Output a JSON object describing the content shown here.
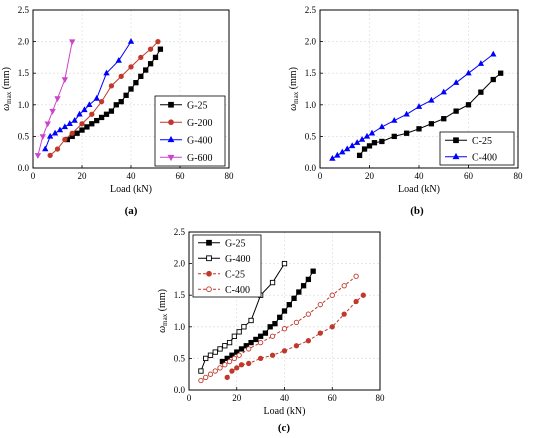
{
  "chart_data": [
    {
      "type": "line",
      "panel_label": "(a)",
      "xlabel": "Load (kN)",
      "ylabel_main": "ω",
      "ylabel_sub": "max",
      "ylabel_unit": " (mm)",
      "xlim": [
        0,
        80
      ],
      "ylim": [
        0,
        2.5
      ],
      "xticks": [
        "0",
        "20",
        "40",
        "60",
        "80"
      ],
      "yticks": [
        "0.0",
        "0.5",
        "1.0",
        "1.5",
        "2.0",
        "2.5"
      ],
      "legend_position": "bottom-right",
      "series": [
        {
          "name": "G-25",
          "color": "#000000",
          "marker": "square",
          "filled": true,
          "dashed": false,
          "x": [
            14,
            16,
            18,
            20,
            22,
            24,
            26,
            28,
            30,
            32,
            34,
            36,
            38,
            40,
            42,
            44,
            46,
            48,
            50,
            52
          ],
          "y": [
            0.45,
            0.5,
            0.55,
            0.6,
            0.65,
            0.7,
            0.75,
            0.8,
            0.85,
            0.9,
            1.0,
            1.05,
            1.15,
            1.25,
            1.35,
            1.45,
            1.55,
            1.65,
            1.75,
            1.88
          ]
        },
        {
          "name": "G-200",
          "color": "#c0392b",
          "marker": "circle",
          "filled": true,
          "dashed": false,
          "x": [
            7,
            10,
            13,
            16,
            20,
            24,
            28,
            32,
            36,
            40,
            44,
            48,
            51
          ],
          "y": [
            0.2,
            0.3,
            0.45,
            0.55,
            0.7,
            0.85,
            1.05,
            1.3,
            1.45,
            1.6,
            1.75,
            1.88,
            2.0
          ]
        },
        {
          "name": "G-400",
          "color": "#0000ff",
          "marker": "triangle",
          "filled": true,
          "dashed": false,
          "x": [
            5,
            7,
            9,
            11,
            13,
            15,
            17,
            19,
            21,
            23,
            26,
            30,
            35,
            40
          ],
          "y": [
            0.3,
            0.5,
            0.55,
            0.6,
            0.65,
            0.7,
            0.75,
            0.85,
            0.92,
            1.0,
            1.1,
            1.5,
            1.7,
            2.0
          ]
        },
        {
          "name": "G-600",
          "color": "#cc44cc",
          "marker": "triangle-down",
          "filled": true,
          "dashed": false,
          "x": [
            2,
            4,
            6,
            8,
            10,
            13,
            16
          ],
          "y": [
            0.2,
            0.5,
            0.7,
            0.9,
            1.1,
            1.4,
            2.0
          ]
        }
      ]
    },
    {
      "type": "line",
      "panel_label": "(b)",
      "xlabel": "Load (kN)",
      "ylabel_main": "ω",
      "ylabel_sub": "max",
      "ylabel_unit": " (mm)",
      "xlim": [
        0,
        80
      ],
      "ylim": [
        0,
        2.5
      ],
      "xticks": [
        "0",
        "20",
        "40",
        "60",
        "80"
      ],
      "yticks": [
        "0.0",
        "0.5",
        "1.0",
        "1.5",
        "2.0",
        "2.5"
      ],
      "legend_position": "bottom-right",
      "series": [
        {
          "name": "C-25",
          "color": "#000000",
          "marker": "square",
          "filled": true,
          "dashed": false,
          "x": [
            16,
            18,
            20,
            22,
            25,
            30,
            35,
            40,
            45,
            50,
            55,
            60,
            65,
            70,
            73
          ],
          "y": [
            0.2,
            0.3,
            0.35,
            0.4,
            0.42,
            0.5,
            0.55,
            0.62,
            0.7,
            0.78,
            0.9,
            1.0,
            1.2,
            1.4,
            1.5
          ]
        },
        {
          "name": "C-400",
          "color": "#0000ff",
          "marker": "triangle",
          "filled": true,
          "dashed": false,
          "x": [
            5,
            7,
            9,
            11,
            13,
            15,
            17,
            19,
            21,
            25,
            30,
            35,
            40,
            45,
            50,
            55,
            60,
            65,
            70
          ],
          "y": [
            0.15,
            0.2,
            0.25,
            0.3,
            0.35,
            0.4,
            0.45,
            0.5,
            0.55,
            0.65,
            0.75,
            0.85,
            0.97,
            1.07,
            1.2,
            1.35,
            1.5,
            1.65,
            1.8
          ]
        }
      ]
    },
    {
      "type": "line",
      "panel_label": "(c)",
      "xlabel": "Load (kN)",
      "ylabel_main": "ω",
      "ylabel_sub": "max",
      "ylabel_unit": " (mm)",
      "xlim": [
        0,
        80
      ],
      "ylim": [
        0,
        2.5
      ],
      "xticks": [
        "0",
        "20",
        "40",
        "60",
        "80"
      ],
      "yticks": [
        "0.0",
        "0.5",
        "1.0",
        "1.5",
        "2.0",
        "2.5"
      ],
      "legend_position": "top-left",
      "series": [
        {
          "name": "G-25",
          "color": "#000000",
          "marker": "square",
          "filled": true,
          "dashed": false,
          "x": [
            14,
            16,
            18,
            20,
            22,
            24,
            26,
            28,
            30,
            32,
            34,
            36,
            38,
            40,
            42,
            44,
            46,
            48,
            50,
            52
          ],
          "y": [
            0.45,
            0.5,
            0.55,
            0.6,
            0.65,
            0.7,
            0.75,
            0.8,
            0.85,
            0.9,
            1.0,
            1.05,
            1.15,
            1.25,
            1.35,
            1.45,
            1.55,
            1.65,
            1.75,
            1.88
          ]
        },
        {
          "name": "G-400",
          "color": "#000000",
          "marker": "square",
          "filled": false,
          "dashed": false,
          "x": [
            5,
            7,
            9,
            11,
            13,
            15,
            17,
            19,
            21,
            23,
            26,
            30,
            35,
            40
          ],
          "y": [
            0.3,
            0.5,
            0.55,
            0.6,
            0.65,
            0.7,
            0.75,
            0.85,
            0.92,
            1.0,
            1.1,
            1.5,
            1.7,
            2.0
          ]
        },
        {
          "name": "C-25",
          "color": "#c0392b",
          "marker": "circle",
          "filled": true,
          "dashed": true,
          "x": [
            16,
            18,
            20,
            22,
            25,
            30,
            35,
            40,
            45,
            50,
            55,
            60,
            65,
            70,
            73
          ],
          "y": [
            0.2,
            0.3,
            0.35,
            0.4,
            0.42,
            0.5,
            0.55,
            0.62,
            0.7,
            0.78,
            0.9,
            1.0,
            1.2,
            1.4,
            1.5
          ]
        },
        {
          "name": "C-400",
          "color": "#c0392b",
          "marker": "circle",
          "filled": false,
          "dashed": true,
          "x": [
            5,
            7,
            9,
            11,
            13,
            15,
            17,
            19,
            21,
            25,
            30,
            35,
            40,
            45,
            50,
            55,
            60,
            65,
            70
          ],
          "y": [
            0.15,
            0.2,
            0.25,
            0.3,
            0.35,
            0.4,
            0.45,
            0.5,
            0.55,
            0.65,
            0.75,
            0.85,
            0.97,
            1.07,
            1.2,
            1.35,
            1.5,
            1.65,
            1.8
          ]
        }
      ]
    }
  ]
}
